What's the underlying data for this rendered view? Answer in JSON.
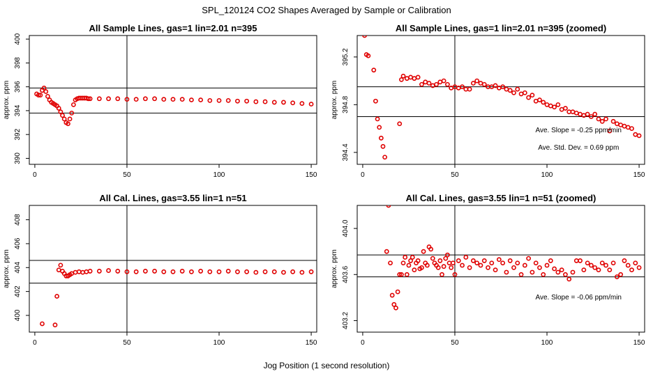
{
  "figure": {
    "title": "SPL_120124  CO2 Shapes Averaged by Sample or Calibration",
    "xlabel": "Jog Position (1 second resolution)"
  },
  "colors": {
    "points": "#e00000",
    "axes": "#000000"
  },
  "chart_data": [
    {
      "id": "sample",
      "type": "scatter",
      "title": "All Sample Lines, gas=1 lin=2.01 n=395",
      "xlabel": "",
      "ylabel": "approx. ppm",
      "xlim": [
        -3,
        153
      ],
      "ylim": [
        389.5,
        400.3
      ],
      "xticks": [
        0,
        50,
        100,
        150
      ],
      "yticks": [
        390,
        392,
        394,
        396,
        398,
        400
      ],
      "ytick_labels": [
        "390",
        "392",
        "394",
        "396",
        "398",
        "400"
      ],
      "vline": 50,
      "hlines": [
        395.9,
        393.8
      ],
      "annotations": [],
      "series": [
        {
          "x": [
            1,
            2,
            3,
            4,
            5,
            6,
            7,
            8,
            9,
            10,
            11,
            12,
            13,
            14,
            15,
            16,
            17,
            18,
            19,
            20,
            21,
            22,
            23,
            24,
            25,
            26,
            27,
            28,
            29,
            30,
            35,
            40,
            45,
            50,
            55,
            60,
            65,
            70,
            75,
            80,
            85,
            90,
            95,
            100,
            105,
            110,
            115,
            120,
            125,
            130,
            135,
            140,
            145,
            150
          ],
          "y": [
            395.4,
            395.3,
            395.3,
            395.7,
            395.9,
            395.6,
            395.2,
            394.9,
            394.7,
            394.6,
            394.5,
            394.4,
            394.2,
            393.9,
            393.6,
            393.3,
            393.0,
            392.9,
            393.3,
            393.8,
            394.5,
            394.9,
            395.0,
            395.05,
            395.05,
            395.05,
            395.05,
            395.05,
            395.0,
            395.0,
            395.0,
            395.0,
            395.0,
            394.95,
            394.95,
            395.0,
            395.0,
            394.95,
            394.95,
            394.95,
            394.9,
            394.9,
            394.85,
            394.85,
            394.85,
            394.8,
            394.8,
            394.75,
            394.75,
            394.7,
            394.7,
            394.65,
            394.6,
            394.55
          ]
        }
      ]
    },
    {
      "id": "sample_zoom",
      "type": "scatter",
      "title": "All Sample Lines, gas=1 lin=2.01 n=395 (zoomed)",
      "xlabel": "",
      "ylabel": "approx. ppm",
      "xlim": [
        -3,
        153
      ],
      "ylim": [
        394.3,
        395.38
      ],
      "xticks": [
        0,
        50,
        100,
        150
      ],
      "yticks": [
        394.4,
        394.8,
        395.2
      ],
      "ytick_labels": [
        "394.4",
        "394.8",
        "395.2"
      ],
      "vline": 50,
      "hlines": [
        394.95,
        394.7
      ],
      "annotations": [
        {
          "label": "Ave. Slope =",
          "value": "-0.25",
          "unit": "ppm/min"
        },
        {
          "label": "Ave. Std. Dev. =",
          "value": "0.69",
          "unit": "ppm"
        }
      ],
      "series": [
        {
          "x": [
            1,
            2,
            3,
            6,
            7,
            8,
            9,
            10,
            11,
            12,
            20,
            21,
            22,
            24,
            26,
            28,
            30,
            32,
            34,
            36,
            38,
            40,
            42,
            44,
            46,
            48,
            50,
            52,
            54,
            56,
            58,
            60,
            62,
            64,
            66,
            68,
            70,
            72,
            74,
            76,
            78,
            80,
            82,
            84,
            86,
            88,
            90,
            92,
            94,
            96,
            98,
            100,
            102,
            104,
            106,
            108,
            110,
            112,
            114,
            116,
            118,
            120,
            122,
            124,
            126,
            128,
            130,
            132,
            134,
            136,
            138,
            140,
            142,
            144,
            146,
            148,
            150
          ],
          "y": [
            395.38,
            395.22,
            395.21,
            395.09,
            394.83,
            394.68,
            394.61,
            394.52,
            394.45,
            394.36,
            394.64,
            395.01,
            395.04,
            395.02,
            395.03,
            395.02,
            395.03,
            394.97,
            394.99,
            394.98,
            394.96,
            394.97,
            394.99,
            395.0,
            394.97,
            394.94,
            394.95,
            394.94,
            394.95,
            394.93,
            394.93,
            394.98,
            395.0,
            394.98,
            394.97,
            394.95,
            394.95,
            394.96,
            394.94,
            394.95,
            394.93,
            394.92,
            394.9,
            394.93,
            394.89,
            394.9,
            394.86,
            394.88,
            394.83,
            394.84,
            394.82,
            394.8,
            394.79,
            394.78,
            394.8,
            394.76,
            394.77,
            394.74,
            394.74,
            394.73,
            394.72,
            394.71,
            394.72,
            394.7,
            394.72,
            394.68,
            394.66,
            394.68,
            394.58,
            394.66,
            394.64,
            394.63,
            394.62,
            394.61,
            394.6,
            394.55,
            394.54
          ]
        }
      ]
    },
    {
      "id": "cal",
      "type": "scatter",
      "title": "All Cal. Lines, gas=3.55 lin=1 n=51",
      "xlabel": "",
      "ylabel": "approx. ppm",
      "xlim": [
        -3,
        153
      ],
      "ylim": [
        398.6,
        409.2
      ],
      "xticks": [
        0,
        50,
        100,
        150
      ],
      "yticks": [
        400,
        402,
        404,
        406,
        408
      ],
      "ytick_labels": [
        "400",
        "402",
        "404",
        "406",
        "408"
      ],
      "vline": 50,
      "hlines": [
        404.6,
        402.7
      ],
      "annotations": [],
      "series": [
        {
          "x": [
            4,
            11,
            12,
            13,
            14,
            15,
            16,
            17,
            18,
            19,
            20,
            22,
            24,
            26,
            28,
            30,
            35,
            40,
            45,
            50,
            55,
            60,
            65,
            70,
            75,
            80,
            85,
            90,
            95,
            100,
            105,
            110,
            115,
            120,
            125,
            130,
            135,
            140,
            145,
            150
          ],
          "y": [
            399.3,
            399.2,
            401.6,
            403.8,
            404.2,
            403.7,
            403.5,
            403.3,
            403.3,
            403.4,
            403.5,
            403.6,
            403.65,
            403.6,
            403.65,
            403.7,
            403.7,
            403.75,
            403.7,
            403.65,
            403.65,
            403.7,
            403.7,
            403.65,
            403.65,
            403.7,
            403.65,
            403.7,
            403.65,
            403.65,
            403.7,
            403.65,
            403.65,
            403.6,
            403.65,
            403.65,
            403.6,
            403.65,
            403.6,
            403.65
          ]
        }
      ]
    },
    {
      "id": "cal_zoom",
      "type": "scatter",
      "title": "All Cal. Lines, gas=3.55 lin=1 n=51 (zoomed)",
      "xlabel": "",
      "ylabel": "approx. ppm",
      "xlim": [
        -3,
        153
      ],
      "ylim": [
        403.1,
        404.2
      ],
      "xticks": [
        0,
        50,
        100,
        150
      ],
      "yticks": [
        403.2,
        403.6,
        404.0
      ],
      "ytick_labels": [
        "403.2",
        "403.6",
        "404.0"
      ],
      "vline": 50,
      "hlines": [
        403.77,
        403.58
      ],
      "annotations": [
        {
          "label": "Ave. Slope =",
          "value": "-0.06",
          "unit": "ppm/min"
        }
      ],
      "series": [
        {
          "x": [
            13,
            14,
            15,
            16,
            17,
            18,
            19,
            20,
            21,
            22,
            23,
            24,
            25,
            26,
            27,
            28,
            29,
            30,
            31,
            32,
            33,
            34,
            35,
            36,
            37,
            38,
            39,
            40,
            41,
            42,
            43,
            44,
            45,
            46,
            47,
            48,
            49,
            50,
            52,
            54,
            56,
            58,
            60,
            62,
            64,
            66,
            68,
            70,
            72,
            74,
            76,
            78,
            80,
            82,
            84,
            86,
            88,
            90,
            92,
            94,
            96,
            98,
            100,
            102,
            104,
            106,
            108,
            110,
            112,
            114,
            116,
            118,
            120,
            122,
            124,
            126,
            128,
            130,
            132,
            134,
            136,
            138,
            140,
            142,
            144,
            146,
            148,
            150
          ],
          "y": [
            403.8,
            404.2,
            403.7,
            403.42,
            403.34,
            403.31,
            403.45,
            403.6,
            403.6,
            403.7,
            403.75,
            403.6,
            403.68,
            403.72,
            403.75,
            403.64,
            403.7,
            403.72,
            403.65,
            403.66,
            403.8,
            403.7,
            403.68,
            403.84,
            403.82,
            403.74,
            403.7,
            403.68,
            403.66,
            403.72,
            403.6,
            403.67,
            403.74,
            403.77,
            403.7,
            403.66,
            403.7,
            403.6,
            403.72,
            403.68,
            403.75,
            403.66,
            403.72,
            403.7,
            403.68,
            403.72,
            403.66,
            403.7,
            403.64,
            403.73,
            403.7,
            403.62,
            403.72,
            403.66,
            403.7,
            403.6,
            403.68,
            403.74,
            403.62,
            403.7,
            403.66,
            403.6,
            403.68,
            403.72,
            403.65,
            403.62,
            403.64,
            403.6,
            403.56,
            403.62,
            403.72,
            403.72,
            403.64,
            403.7,
            403.68,
            403.66,
            403.64,
            403.7,
            403.68,
            403.64,
            403.7,
            403.58,
            403.6,
            403.72,
            403.68,
            403.64,
            403.7,
            403.66
          ]
        }
      ]
    }
  ]
}
